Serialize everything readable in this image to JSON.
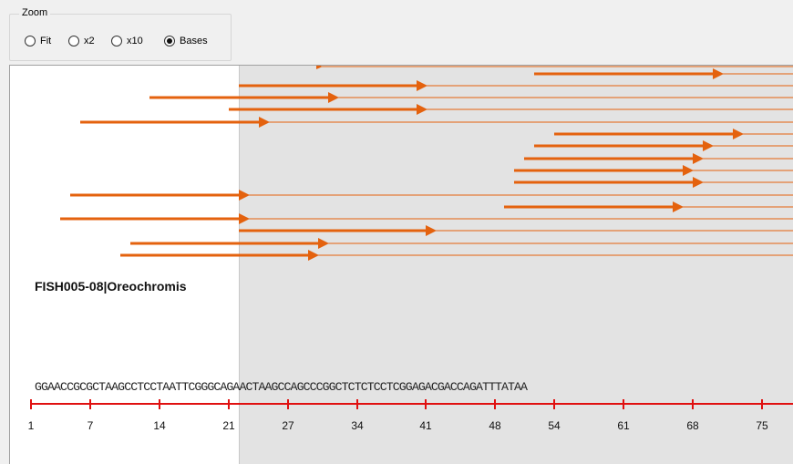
{
  "zoom": {
    "title": "Zoom",
    "options": [
      {
        "label": "Fit",
        "selected": false
      },
      {
        "label": "x2",
        "selected": false
      },
      {
        "label": "x10",
        "selected": false
      },
      {
        "label": "Bases",
        "selected": true
      }
    ]
  },
  "sequence": {
    "name": "FISH005-08|Oreochromis",
    "bases": "GGAACCGCGCTAAGCCTCCTAATTCGGGCAGAACTAAGCCAGCCCGGCTCTCTCCTCGGAGACGACCAGATTTATAA",
    "ruler_labels": [
      "1",
      "7",
      "14",
      "21",
      "27",
      "34",
      "41",
      "48",
      "54",
      "61",
      "68",
      "75"
    ]
  },
  "colors": {
    "read_color": "#e4620e",
    "ruler_color": "#e01010",
    "reference_shade": "#e3e3e3"
  }
}
